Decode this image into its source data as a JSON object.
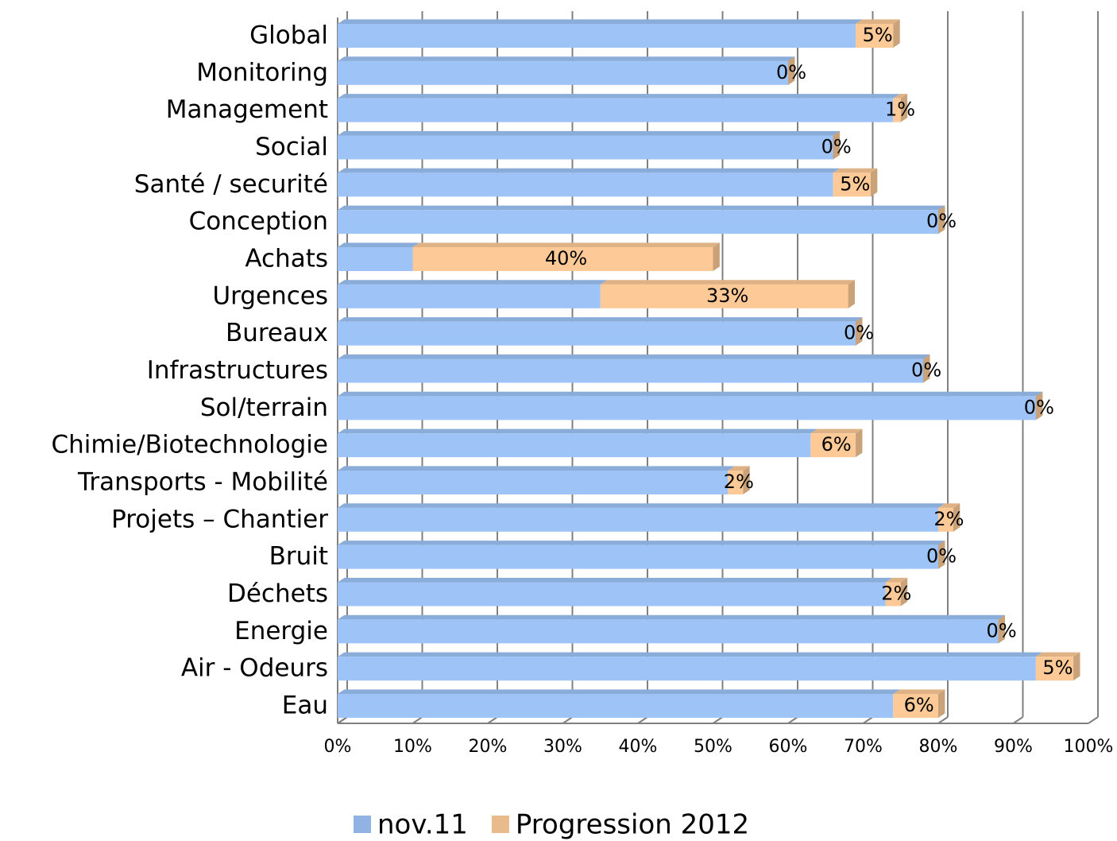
{
  "chart_data": {
    "type": "bar",
    "orientation": "horizontal",
    "stacked": true,
    "categories": [
      "Global",
      "Monitoring",
      "Management",
      "Social",
      "Santé / securité",
      "Conception",
      "Achats",
      "Urgences",
      "Bureaux",
      "Infrastructures",
      "Sol/terrain",
      "Chimie/Biotechnologie",
      "Transports - Mobilité",
      "Projets – Chantier",
      "Bruit",
      "Déchets",
      "Energie",
      "Air - Odeurs",
      "Eau"
    ],
    "series": [
      {
        "name": "nov.11",
        "color": "#9dc3f7",
        "values": [
          69,
          60,
          74,
          66,
          66,
          80,
          10,
          35,
          69,
          78,
          93,
          63,
          52,
          80,
          80,
          73,
          88,
          93,
          74
        ]
      },
      {
        "name": "Progression 2012",
        "color": "#fdca97",
        "values": [
          5,
          0,
          1,
          0,
          5,
          0,
          40,
          33,
          0,
          0,
          0,
          6,
          2,
          2,
          0,
          2,
          0,
          5,
          6
        ],
        "value_labels": [
          "5%",
          "0%",
          "1%",
          "0%",
          "5%",
          "0%",
          "40%",
          "33%",
          "0%",
          "0%",
          "0%",
          "6%",
          "2%",
          "2%",
          "0%",
          "2%",
          "0%",
          "5%",
          "6%"
        ]
      }
    ],
    "xlim": [
      0,
      100
    ],
    "xticks": [
      {
        "value": 0,
        "label": "0%"
      },
      {
        "value": 10,
        "label": "10%"
      },
      {
        "value": 20,
        "label": "20%"
      },
      {
        "value": 30,
        "label": "30%"
      },
      {
        "value": 40,
        "label": "40%"
      },
      {
        "value": 50,
        "label": "50%"
      },
      {
        "value": 60,
        "label": "60%"
      },
      {
        "value": 70,
        "label": "70%"
      },
      {
        "value": 80,
        "label": "80%"
      },
      {
        "value": 90,
        "label": "90%"
      },
      {
        "value": 100,
        "label": "100%"
      }
    ],
    "grid": true,
    "legend": "bottom"
  }
}
